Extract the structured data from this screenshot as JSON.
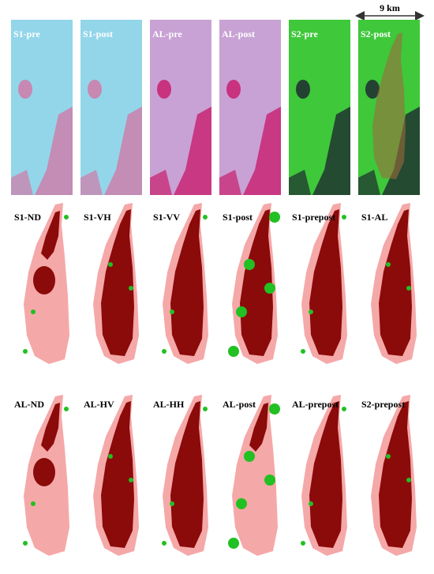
{
  "scale_bar": "9 km",
  "rows": [
    {
      "kind": "imagery",
      "panels": [
        "S1-pre",
        "S1-post",
        "AL-pre",
        "AL-post",
        "S2-pre",
        "S2-post"
      ]
    },
    {
      "kind": "map",
      "panels": [
        "S1-ND",
        "S1-VH",
        "S1-VV",
        "S1-post",
        "S1-prepost",
        "S1-AL"
      ]
    },
    {
      "kind": "map",
      "panels": [
        "AL-ND",
        "AL-HV",
        "AL-HH",
        "AL-post",
        "AL-prepost",
        "S2-prepost"
      ]
    }
  ]
}
